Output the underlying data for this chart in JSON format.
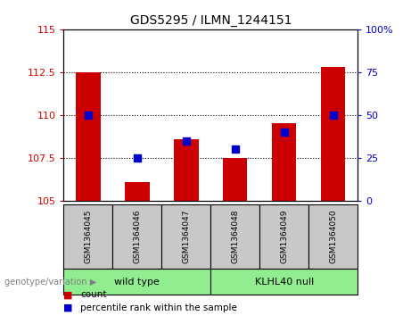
{
  "title": "GDS5295 / ILMN_1244151",
  "samples": [
    "GSM1364045",
    "GSM1364046",
    "GSM1364047",
    "GSM1364048",
    "GSM1364049",
    "GSM1364050"
  ],
  "red_values": [
    112.5,
    106.1,
    108.6,
    107.5,
    109.5,
    112.8
  ],
  "blue_percentiles": [
    50,
    25,
    35,
    30,
    40,
    50
  ],
  "ylim": [
    105,
    115
  ],
  "y2lim": [
    0,
    100
  ],
  "yticks": [
    105,
    107.5,
    110,
    112.5,
    115
  ],
  "ytick_labels": [
    "105",
    "107.5",
    "110",
    "112.5",
    "115"
  ],
  "y2ticks": [
    0,
    25,
    50,
    75,
    100
  ],
  "y2tick_labels": [
    "0",
    "25",
    "50",
    "75",
    "100%"
  ],
  "hlines": [
    107.5,
    110.0,
    112.5
  ],
  "bar_bottom": 105,
  "bar_color": "#cc0000",
  "dot_color": "#0000cc",
  "dot_size": 30,
  "bar_width": 0.5,
  "tick_color_left": "#cc0000",
  "tick_color_right": "#0000cc",
  "gray_color": "#c8c8c8",
  "green_color": "#90EE90",
  "wt_label": "wild type",
  "kl_label": "KLHL40 null",
  "genotype_label": "genotype/variation",
  "legend_count_label": "count",
  "legend_pct_label": "percentile rank within the sample"
}
